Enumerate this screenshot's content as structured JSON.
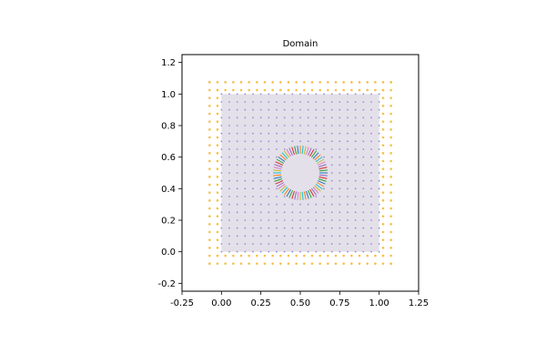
{
  "chart_data": {
    "type": "scatter",
    "title": "Domain",
    "xlabel": "",
    "ylabel": "",
    "xlim": [
      -0.25,
      1.25
    ],
    "ylim": [
      -0.25,
      1.25
    ],
    "x_ticks": [
      "-0.25",
      "0.00",
      "0.25",
      "0.50",
      "0.75",
      "1.00",
      "1.25"
    ],
    "y_ticks": [
      "-0.2",
      "0.0",
      "0.2",
      "0.4",
      "0.6",
      "0.8",
      "1.0",
      "1.2"
    ],
    "grid": false,
    "domain": {
      "x_range": [
        0,
        1
      ],
      "y_range": [
        0,
        1
      ],
      "fill_color": "#e3e0ea",
      "interior_points": {
        "spacing": 0.05,
        "color": "#9b8fd0"
      }
    },
    "hole": {
      "center": [
        0.5,
        0.5
      ],
      "radius": 0.15,
      "boundary_segment_count": 60,
      "segment_colors": [
        "#1f77b4",
        "#2ca02c",
        "#d62728",
        "#9467bd",
        "#e377c2",
        "#bcbd22",
        "#17becf",
        "#ff7f0e"
      ]
    },
    "ghost_points": {
      "color": "#f7c04a",
      "outer_range": [
        -0.075,
        1.075
      ],
      "inner_range": [
        -0.025,
        1.025
      ],
      "spacing": 0.05
    }
  }
}
